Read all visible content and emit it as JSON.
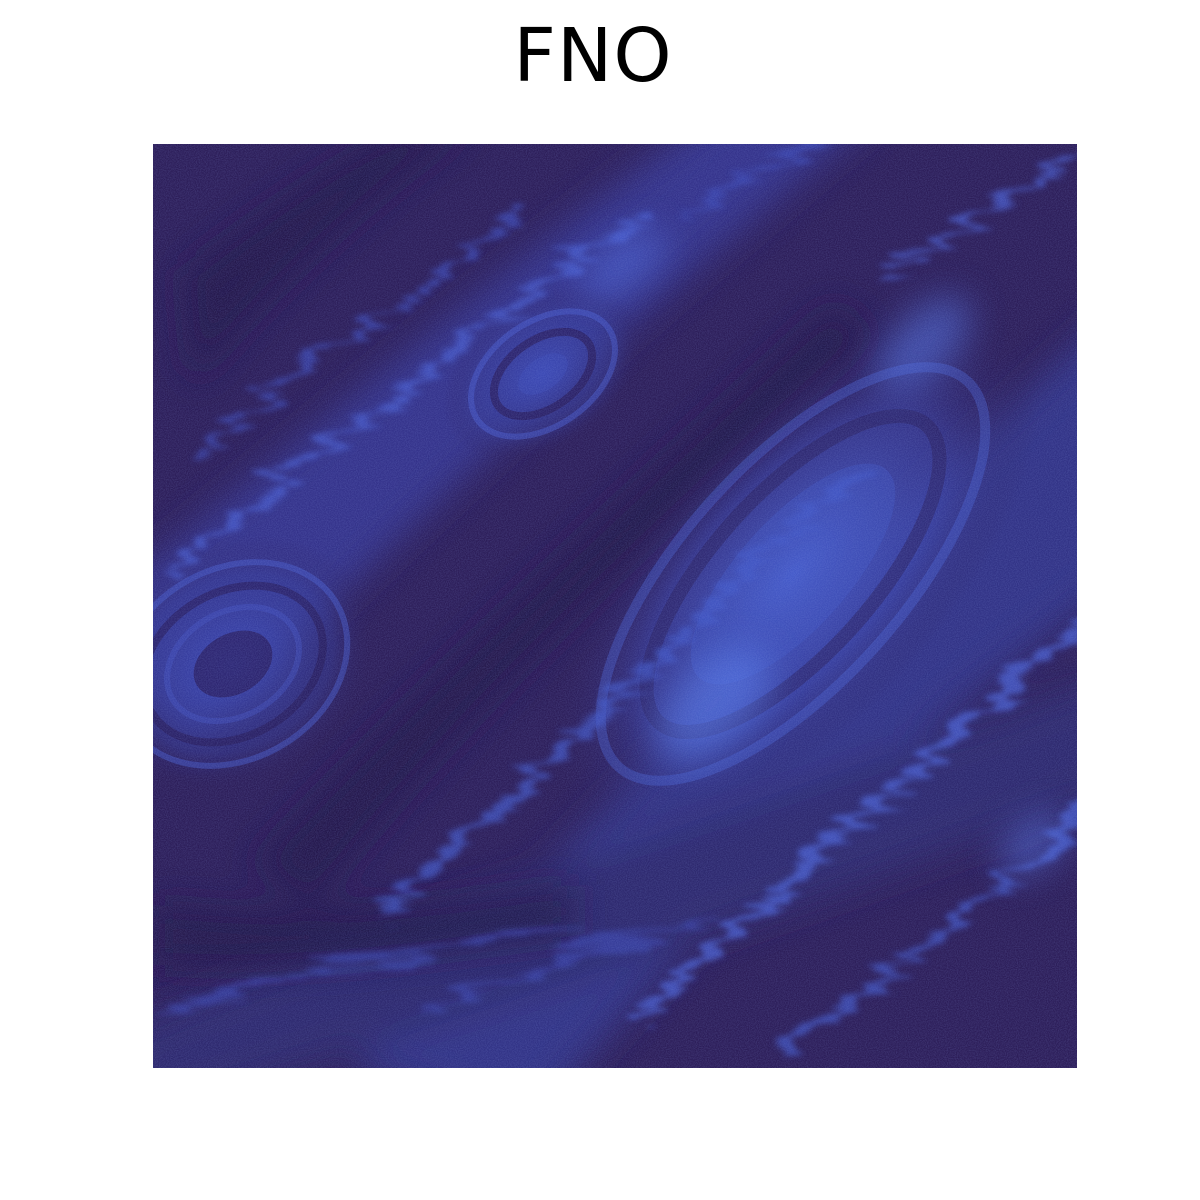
{
  "figure": {
    "title": "FNO"
  },
  "image": {
    "subject": "flow-field",
    "colors": {
      "background": "#2a1a52",
      "dark": "#25154a",
      "mid": "#3b3a9a",
      "bright": "#4b64d8",
      "highlight": "#5a7ff0"
    }
  }
}
